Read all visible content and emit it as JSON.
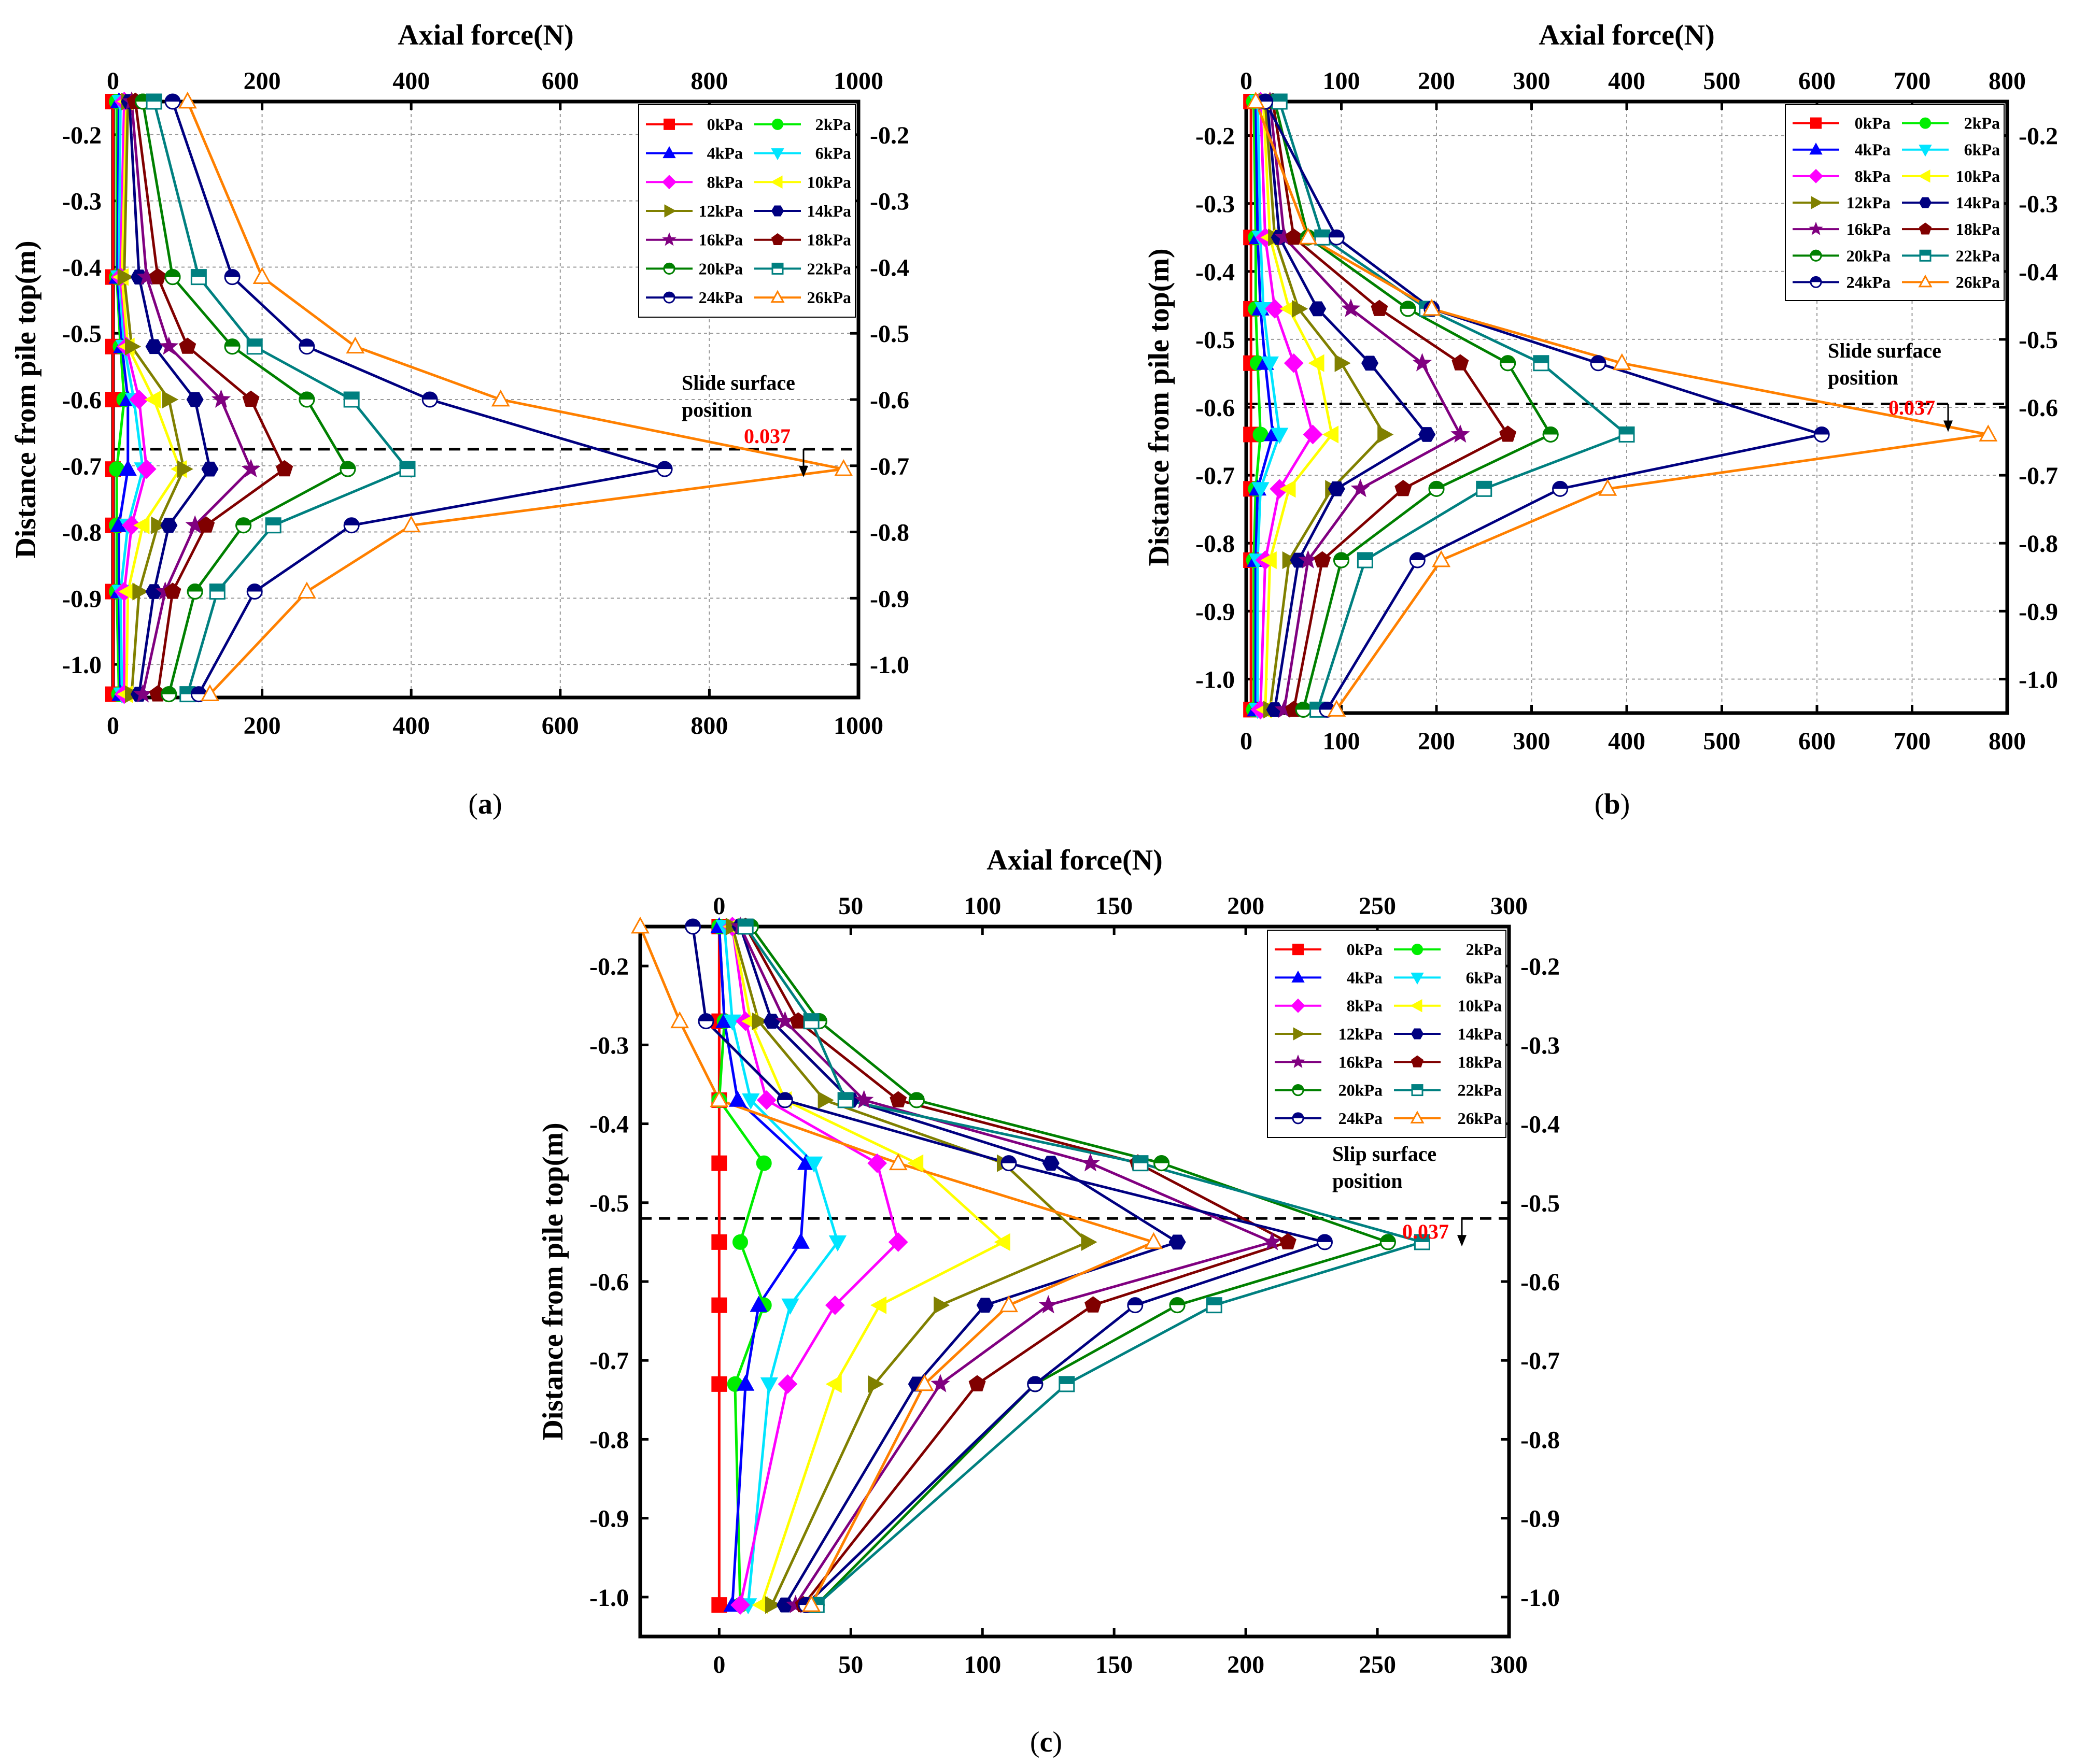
{
  "series_styles": [
    {
      "name": "0kPa",
      "color": "#ff0000",
      "marker": "square"
    },
    {
      "name": "2kPa",
      "color": "#00ee00",
      "marker": "circle"
    },
    {
      "name": "4kPa",
      "color": "#0000ff",
      "marker": "triangle-up"
    },
    {
      "name": "6kPa",
      "color": "#00e5ff",
      "marker": "triangle-down"
    },
    {
      "name": "8kPa",
      "color": "#ff00ff",
      "marker": "diamond"
    },
    {
      "name": "10kPa",
      "color": "#ffff00",
      "marker": "triangle-left"
    },
    {
      "name": "12kPa",
      "color": "#808000",
      "marker": "triangle-right"
    },
    {
      "name": "14kPa",
      "color": "#000080",
      "marker": "hexagon"
    },
    {
      "name": "16kPa",
      "color": "#800080",
      "marker": "star"
    },
    {
      "name": "18kPa",
      "color": "#800000",
      "marker": "pentagon"
    },
    {
      "name": "20kPa",
      "color": "#008000",
      "marker": "half-circle"
    },
    {
      "name": "22kPa",
      "color": "#008080",
      "marker": "half-square"
    },
    {
      "name": "24kPa",
      "color": "#000080",
      "marker": "half-circle-open"
    },
    {
      "name": "26kPa",
      "color": "#ff8000",
      "marker": "triangle-open"
    }
  ],
  "chart_data": [
    {
      "id": "a",
      "type": "line",
      "panel_label": "a",
      "xlabel": "Axial force(N)",
      "ylabel": "Distance from pile top(m)",
      "xlim": [
        0,
        1000
      ],
      "ylim": [
        -1.05,
        -0.15
      ],
      "xticks": [
        0,
        200,
        400,
        600,
        800,
        1000
      ],
      "yticks": [
        -0.2,
        -0.3,
        -0.4,
        -0.5,
        -0.6,
        -0.7,
        -0.8,
        -0.9,
        -1.0
      ],
      "ytick_labels": [
        "-0.2",
        "-0.3",
        "-0.4",
        "-0.5",
        "-0.6",
        "-0.7",
        "-0.8",
        "-0.9",
        "-1.0"
      ],
      "grid": true,
      "legend_position": "top-right",
      "slide_line_y": -0.675,
      "annotation_text": "Slide surface position",
      "annotation_lines": [
        "Slide surface",
        "position"
      ],
      "annotation_value": "0.037",
      "y_points": [
        -0.15,
        -0.415,
        -0.52,
        -0.6,
        -0.705,
        -0.79,
        -0.89,
        -1.045
      ],
      "series": [
        {
          "name": "0kPa",
          "values": [
            0,
            0,
            0,
            0,
            0,
            0,
            0,
            0
          ]
        },
        {
          "name": "2kPa",
          "values": [
            5,
            5,
            10,
            15,
            5,
            5,
            5,
            8
          ]
        },
        {
          "name": "4kPa",
          "values": [
            8,
            6,
            12,
            20,
            20,
            8,
            8,
            10
          ]
        },
        {
          "name": "6kPa",
          "values": [
            10,
            8,
            15,
            28,
            40,
            20,
            10,
            12
          ]
        },
        {
          "name": "8kPa",
          "values": [
            15,
            10,
            18,
            35,
            45,
            25,
            15,
            15
          ]
        },
        {
          "name": "10kPa",
          "values": [
            18,
            12,
            20,
            55,
            90,
            40,
            20,
            18
          ]
        },
        {
          "name": "12kPa",
          "values": [
            20,
            15,
            25,
            75,
            95,
            60,
            35,
            25
          ]
        },
        {
          "name": "14kPa",
          "values": [
            22,
            35,
            55,
            110,
            130,
            75,
            55,
            35
          ]
        },
        {
          "name": "16kPa",
          "values": [
            25,
            45,
            75,
            145,
            185,
            110,
            70,
            40
          ]
        },
        {
          "name": "18kPa",
          "values": [
            30,
            60,
            100,
            185,
            230,
            125,
            80,
            60
          ]
        },
        {
          "name": "20kPa",
          "values": [
            40,
            80,
            160,
            260,
            315,
            175,
            110,
            75
          ]
        },
        {
          "name": "22kPa",
          "values": [
            55,
            115,
            190,
            320,
            395,
            215,
            140,
            100
          ]
        },
        {
          "name": "24kPa",
          "values": [
            80,
            160,
            260,
            425,
            740,
            320,
            190,
            115
          ]
        },
        {
          "name": "26kPa",
          "values": [
            100,
            200,
            325,
            520,
            980,
            400,
            260,
            130
          ]
        }
      ]
    },
    {
      "id": "b",
      "type": "line",
      "panel_label": "b",
      "xlabel": "Axial force(N)",
      "ylabel": "Distance from pile top(m)",
      "xlim": [
        0,
        800
      ],
      "ylim": [
        -1.05,
        -0.15
      ],
      "xticks": [
        0,
        100,
        200,
        300,
        400,
        500,
        600,
        700,
        800
      ],
      "yticks": [
        -0.2,
        -0.3,
        -0.4,
        -0.5,
        -0.6,
        -0.7,
        -0.8,
        -0.9,
        -1.0
      ],
      "ytick_labels": [
        "-0.2",
        "-0.3",
        "-0.4",
        "-0.5",
        "-0.6",
        "-0.7",
        "-0.8",
        "-0.9",
        "-1.0"
      ],
      "grid": true,
      "legend_position": "top-right",
      "slide_line_y": -0.595,
      "annotation_text": "Slide surface position",
      "annotation_lines": [
        "Slide surface",
        "position"
      ],
      "annotation_value": "0.037",
      "y_points": [
        -0.15,
        -0.35,
        -0.455,
        -0.535,
        -0.64,
        -0.72,
        -0.825,
        -1.045
      ],
      "series": [
        {
          "name": "0kPa",
          "values": [
            5,
            5,
            5,
            5,
            5,
            5,
            5,
            5
          ]
        },
        {
          "name": "2kPa",
          "values": [
            8,
            10,
            10,
            12,
            15,
            10,
            8,
            8
          ]
        },
        {
          "name": "4kPa",
          "values": [
            10,
            12,
            15,
            20,
            28,
            12,
            10,
            10
          ]
        },
        {
          "name": "6kPa",
          "values": [
            12,
            15,
            18,
            25,
            35,
            15,
            12,
            12
          ]
        },
        {
          "name": "8kPa",
          "values": [
            15,
            20,
            30,
            50,
            70,
            35,
            20,
            15
          ]
        },
        {
          "name": "10kPa",
          "values": [
            18,
            25,
            45,
            75,
            90,
            45,
            25,
            20
          ]
        },
        {
          "name": "12kPa",
          "values": [
            20,
            30,
            55,
            100,
            145,
            90,
            45,
            25
          ]
        },
        {
          "name": "14kPa",
          "values": [
            22,
            35,
            75,
            130,
            190,
            95,
            55,
            30
          ]
        },
        {
          "name": "16kPa",
          "values": [
            25,
            40,
            110,
            185,
            225,
            120,
            65,
            40
          ]
        },
        {
          "name": "18kPa",
          "values": [
            28,
            50,
            140,
            225,
            275,
            165,
            80,
            50
          ]
        },
        {
          "name": "20kPa",
          "values": [
            30,
            65,
            170,
            275,
            320,
            200,
            100,
            60
          ]
        },
        {
          "name": "22kPa",
          "values": [
            35,
            80,
            190,
            310,
            400,
            250,
            125,
            75
          ]
        },
        {
          "name": "24kPa",
          "values": [
            20,
            95,
            195,
            370,
            605,
            330,
            180,
            85
          ]
        },
        {
          "name": "26kPa",
          "values": [
            10,
            65,
            195,
            395,
            780,
            380,
            205,
            95
          ]
        }
      ]
    },
    {
      "id": "c",
      "type": "line",
      "panel_label": "c",
      "xlabel": "Axial force(N)",
      "ylabel": "Distance from pile top(m)",
      "xlim": [
        -30,
        300
      ],
      "ylim": [
        -1.05,
        -0.15
      ],
      "xticks": [
        0,
        50,
        100,
        150,
        200,
        250,
        300
      ],
      "yticks": [
        -0.2,
        -0.3,
        -0.4,
        -0.5,
        -0.6,
        -0.7,
        -0.8,
        -0.9,
        -1.0
      ],
      "ytick_labels": [
        "-0.2",
        "-0.3",
        "-0.4",
        "-0.5",
        "-0.6",
        "-0.7",
        "-0.8",
        "-0.9",
        "-1.0"
      ],
      "grid": false,
      "legend_position": "top-right",
      "slide_line_y": -0.52,
      "annotation_text": "Slip surface position",
      "annotation_lines": [
        "Slip surface",
        "position"
      ],
      "annotation_value": "0.037",
      "y_points": [
        -0.15,
        -0.27,
        -0.37,
        -0.45,
        -0.55,
        -0.63,
        -0.73,
        -1.01
      ],
      "series": [
        {
          "name": "0kPa",
          "values": [
            0,
            0,
            0,
            0,
            0,
            0,
            0,
            0
          ]
        },
        {
          "name": "2kPa",
          "values": [
            0,
            2,
            0,
            17,
            8,
            17,
            6,
            8
          ]
        },
        {
          "name": "4kPa",
          "values": [
            0,
            2,
            7,
            33,
            31,
            15,
            10,
            5
          ]
        },
        {
          "name": "6kPa",
          "values": [
            2,
            5,
            12,
            36,
            45,
            27,
            19,
            11
          ]
        },
        {
          "name": "8kPa",
          "values": [
            5,
            10,
            18,
            60,
            68,
            44,
            26,
            8
          ]
        },
        {
          "name": "10kPa",
          "values": [
            5,
            12,
            25,
            75,
            108,
            61,
            44,
            16
          ]
        },
        {
          "name": "12kPa",
          "values": [
            5,
            15,
            40,
            108,
            140,
            84,
            59,
            20
          ]
        },
        {
          "name": "14kPa",
          "values": [
            8,
            20,
            50,
            126,
            174,
            101,
            75,
            25
          ]
        },
        {
          "name": "16kPa",
          "values": [
            8,
            25,
            55,
            141,
            210,
            125,
            84,
            29
          ]
        },
        {
          "name": "18kPa",
          "values": [
            10,
            30,
            68,
            159,
            216,
            142,
            98,
            32
          ]
        },
        {
          "name": "20kPa",
          "values": [
            12,
            38,
            75,
            168,
            254,
            174,
            120,
            37
          ]
        },
        {
          "name": "22kPa",
          "values": [
            10,
            35,
            48,
            160,
            267,
            188,
            132,
            37
          ]
        },
        {
          "name": "24kPa",
          "values": [
            -10,
            -5,
            25,
            110,
            230,
            158,
            120,
            33
          ]
        },
        {
          "name": "26kPa",
          "values": [
            -30,
            -15,
            0,
            68,
            165,
            110,
            78,
            35
          ]
        }
      ]
    }
  ]
}
